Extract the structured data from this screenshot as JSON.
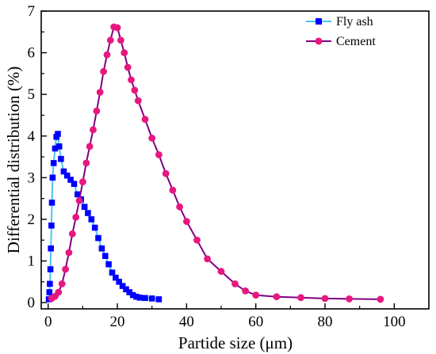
{
  "chart_data": {
    "type": "line",
    "xlabel": "Partide size (μm)",
    "ylabel": "Differential distribution (%)",
    "xlim": [
      -2,
      110
    ],
    "ylim": [
      -0.15,
      7
    ],
    "xticks": [
      0,
      20,
      40,
      60,
      80,
      100
    ],
    "yticks": [
      0,
      1,
      2,
      3,
      4,
      5,
      6,
      7
    ],
    "x_tick_labels": [
      "0",
      "20",
      "40",
      "60",
      "80",
      "100"
    ],
    "y_tick_labels": [
      "0",
      "1",
      "2",
      "3",
      "4",
      "5",
      "6",
      "7"
    ],
    "grid": false,
    "legend_position": "top-right",
    "series": [
      {
        "name": "Fly ash",
        "marker": "square",
        "line_color": "#4dc3ee",
        "marker_color": "#0000ff",
        "x": [
          0.2,
          0.35,
          0.5,
          0.65,
          0.8,
          0.95,
          1.1,
          1.3,
          1.6,
          2.0,
          2.4,
          2.8,
          3.2,
          3.7,
          4.5,
          5.5,
          6.5,
          7.5,
          8.5,
          9.5,
          10.5,
          11.5,
          12.5,
          13.5,
          14.5,
          15.5,
          16.5,
          17.5,
          18.5,
          19.5,
          20.5,
          21.5,
          22.5,
          23.5,
          24.5,
          25.5,
          26.5,
          28.0,
          30.0,
          32.0
        ],
        "y": [
          0.08,
          0.25,
          0.45,
          0.8,
          1.3,
          1.85,
          2.4,
          3.0,
          3.35,
          3.7,
          3.98,
          4.05,
          3.75,
          3.45,
          3.15,
          3.05,
          2.95,
          2.85,
          2.6,
          2.48,
          2.3,
          2.15,
          2.0,
          1.8,
          1.55,
          1.3,
          1.12,
          0.92,
          0.72,
          0.6,
          0.5,
          0.4,
          0.32,
          0.25,
          0.18,
          0.14,
          0.12,
          0.11,
          0.1,
          0.08
        ]
      },
      {
        "name": "Cement",
        "marker": "circle",
        "line_color": "#800080",
        "marker_color": "#e8177f",
        "x": [
          1.0,
          2.0,
          3.0,
          4.0,
          5.0,
          6.0,
          7.0,
          8.0,
          9.0,
          10.0,
          11.0,
          12.0,
          13.0,
          14.0,
          15.0,
          16.0,
          17.0,
          18.0,
          19.0,
          20.0,
          21.0,
          22.0,
          23.0,
          24.0,
          25.0,
          26.0,
          28.0,
          30.0,
          32.0,
          34.0,
          36.0,
          38.0,
          40.0,
          43.0,
          46.0,
          50.0,
          54.0,
          57.0,
          60.0,
          66.0,
          73.0,
          80.0,
          87.0,
          96.0
        ],
        "y": [
          0.1,
          0.15,
          0.25,
          0.45,
          0.8,
          1.2,
          1.65,
          2.05,
          2.45,
          2.9,
          3.35,
          3.75,
          4.15,
          4.6,
          5.05,
          5.55,
          5.95,
          6.3,
          6.62,
          6.6,
          6.3,
          6.0,
          5.65,
          5.35,
          5.1,
          4.85,
          4.4,
          3.95,
          3.55,
          3.1,
          2.7,
          2.3,
          1.95,
          1.5,
          1.05,
          0.75,
          0.45,
          0.28,
          0.18,
          0.14,
          0.12,
          0.1,
          0.09,
          0.08
        ]
      }
    ]
  }
}
